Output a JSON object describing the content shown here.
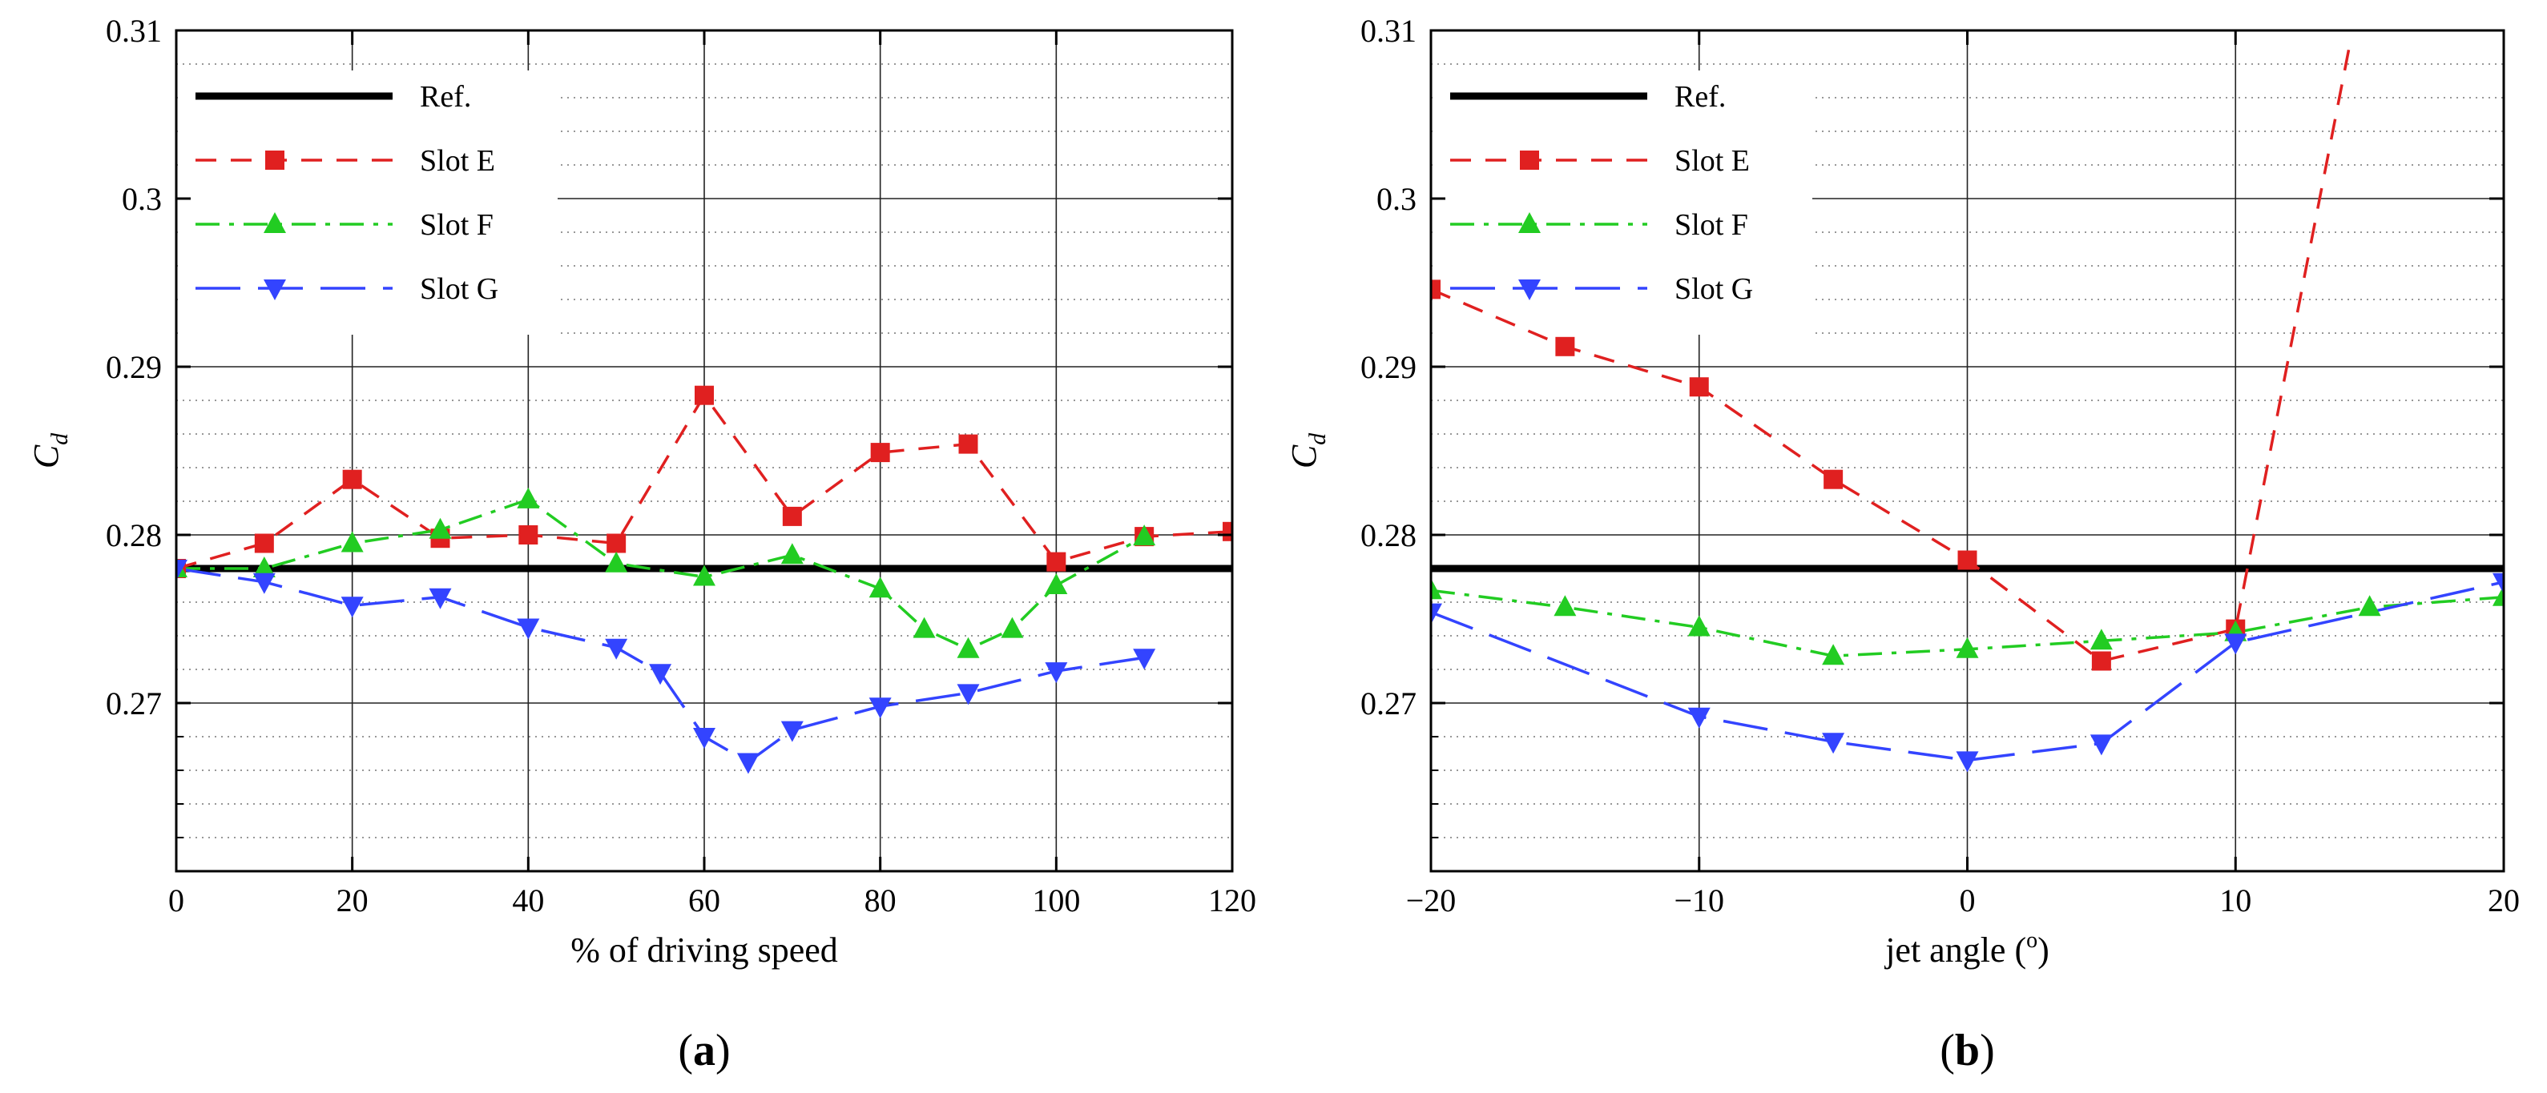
{
  "chart_data": [
    {
      "type": "line",
      "panel_label": "(a)",
      "panel_label_parts": [
        "(",
        "a",
        ")"
      ],
      "xlabel": "% of driving speed",
      "ylabel": "C",
      "ylabel_sub": "d",
      "xlim": [
        0,
        120
      ],
      "ylim": [
        0.26,
        0.31
      ],
      "xticks": [
        0,
        20,
        40,
        60,
        80,
        100,
        120
      ],
      "xtick_labels": [
        "0",
        "20",
        "40",
        "60",
        "80",
        "100",
        "120"
      ],
      "yticks": [
        0.27,
        0.28,
        0.29,
        0.3,
        0.31
      ],
      "ytick_labels": [
        "0.27",
        "0.28",
        "0.29",
        "0.3",
        "0.31"
      ],
      "legend_position": "top-left",
      "series": [
        {
          "name": "Ref.",
          "color": "#000000",
          "style": "solid-thick",
          "marker": "none",
          "x": [
            0,
            120
          ],
          "y": [
            0.278,
            0.278
          ]
        },
        {
          "name": "Slot E",
          "color": "#e02020",
          "style": "dashed",
          "marker": "square",
          "x": [
            0,
            10,
            20,
            30,
            40,
            50,
            60,
            70,
            80,
            90,
            100,
            110,
            120
          ],
          "y": [
            0.278,
            0.2795,
            0.2833,
            0.2798,
            0.28,
            0.2795,
            0.2883,
            0.2811,
            0.2849,
            0.2854,
            0.2784,
            0.2799,
            0.2802
          ]
        },
        {
          "name": "Slot F",
          "color": "#22cc22",
          "style": "dash-dot",
          "marker": "triangle-up",
          "x": [
            0,
            10,
            20,
            30,
            40,
            50,
            60,
            70,
            80,
            85,
            90,
            95,
            100,
            110
          ],
          "y": [
            0.278,
            0.278,
            0.2795,
            0.2803,
            0.2821,
            0.2783,
            0.2775,
            0.2788,
            0.2768,
            0.2744,
            0.2732,
            0.2744,
            0.277,
            0.2799
          ]
        },
        {
          "name": "Slot G",
          "color": "#3344ff",
          "style": "long-dash",
          "marker": "triangle-down",
          "x": [
            0,
            10,
            20,
            30,
            40,
            50,
            55,
            60,
            65,
            70,
            80,
            90,
            100,
            110
          ],
          "y": [
            0.278,
            0.2772,
            0.2758,
            0.2763,
            0.2745,
            0.2733,
            0.2718,
            0.268,
            0.2665,
            0.2684,
            0.2698,
            0.2706,
            0.2719,
            0.2727
          ]
        }
      ]
    },
    {
      "type": "line",
      "panel_label": "(b)",
      "panel_label_parts": [
        "(",
        "b",
        ")"
      ],
      "xlabel": "jet angle (°)",
      "xlabel_parts": [
        "jet angle (",
        "o",
        ")"
      ],
      "ylabel": "C",
      "ylabel_sub": "d",
      "xlim": [
        -20,
        20
      ],
      "ylim": [
        0.26,
        0.31
      ],
      "xticks": [
        -20,
        -10,
        0,
        10,
        20
      ],
      "xtick_labels": [
        "−20",
        "−10",
        "0",
        "10",
        "20"
      ],
      "yticks": [
        0.27,
        0.28,
        0.29,
        0.3,
        0.31
      ],
      "ytick_labels": [
        "0.27",
        "0.28",
        "0.29",
        "0.3",
        "0.31"
      ],
      "legend_position": "top-left",
      "series": [
        {
          "name": "Ref.",
          "color": "#000000",
          "style": "solid-thick",
          "marker": "none",
          "x": [
            -20,
            20
          ],
          "y": [
            0.278,
            0.278
          ]
        },
        {
          "name": "Slot E",
          "color": "#e02020",
          "style": "dashed",
          "marker": "square",
          "x": [
            -20,
            -15,
            -10,
            -5,
            0,
            5,
            10,
            14.3
          ],
          "y": [
            0.2946,
            0.2912,
            0.2888,
            0.2833,
            0.2785,
            0.2725,
            0.2744,
            0.3095
          ],
          "marker_count": 7
        },
        {
          "name": "Slot F",
          "color": "#22cc22",
          "style": "dash-dot",
          "marker": "triangle-up",
          "x": [
            -20,
            -15,
            -10,
            -5,
            0,
            5,
            10,
            15,
            20
          ],
          "y": [
            0.2767,
            0.2757,
            0.2745,
            0.2728,
            0.2732,
            0.2737,
            0.2742,
            0.2757,
            0.2763
          ]
        },
        {
          "name": "Slot G",
          "color": "#3344ff",
          "style": "long-dash",
          "marker": "triangle-down",
          "x": [
            -20,
            -10,
            -5,
            0,
            5,
            10,
            20
          ],
          "y": [
            0.2754,
            0.2692,
            0.2677,
            0.2666,
            0.2676,
            0.2736,
            0.2772
          ]
        }
      ]
    }
  ]
}
